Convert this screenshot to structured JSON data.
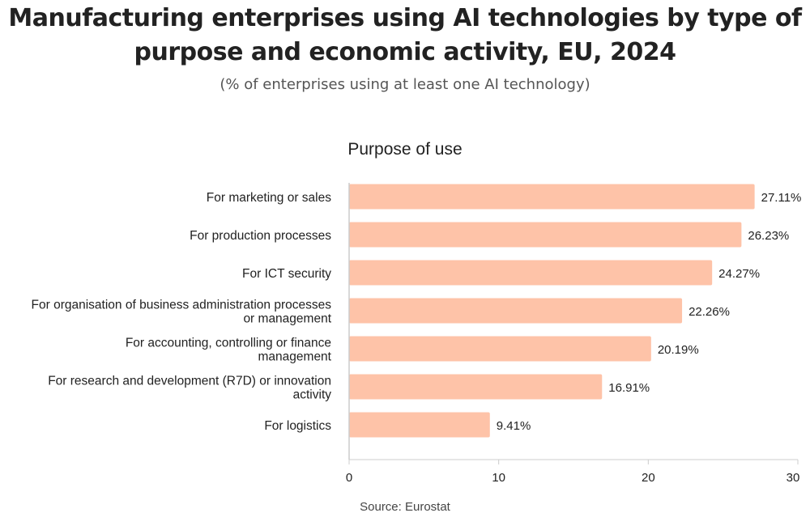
{
  "title": "Manufacturing enterprises using AI technologies by type of purpose and economic activity, EU, 2024",
  "subtitle": "(% of enterprises using at least one AI technology)",
  "source": "Source: Eurostat",
  "colors": {
    "bar": "#fec3a8",
    "axis": "#cccccc",
    "text": "#222222"
  },
  "chart_data": {
    "type": "bar",
    "orientation": "horizontal",
    "title": "Purpose of use",
    "categories": [
      [
        "For marketing or sales"
      ],
      [
        "For production processes"
      ],
      [
        "For ICT security"
      ],
      [
        "For organisation of  business administration processes",
        "or management"
      ],
      [
        "For accounting, controlling or finance",
        "management"
      ],
      [
        "For research and development (R7D) or innovation",
        "activity"
      ],
      [
        "For logistics"
      ]
    ],
    "values": [
      27.11,
      26.23,
      24.27,
      22.26,
      20.19,
      16.91,
      9.41
    ],
    "data_labels": [
      "27.11%",
      "26.23%",
      "24.27%",
      "22.26%",
      "20.19%",
      "16.91%",
      "9.41%"
    ],
    "xlim": [
      0,
      30
    ],
    "xticks": [
      0,
      10,
      20,
      30
    ],
    "grid": false,
    "legend": "none"
  }
}
